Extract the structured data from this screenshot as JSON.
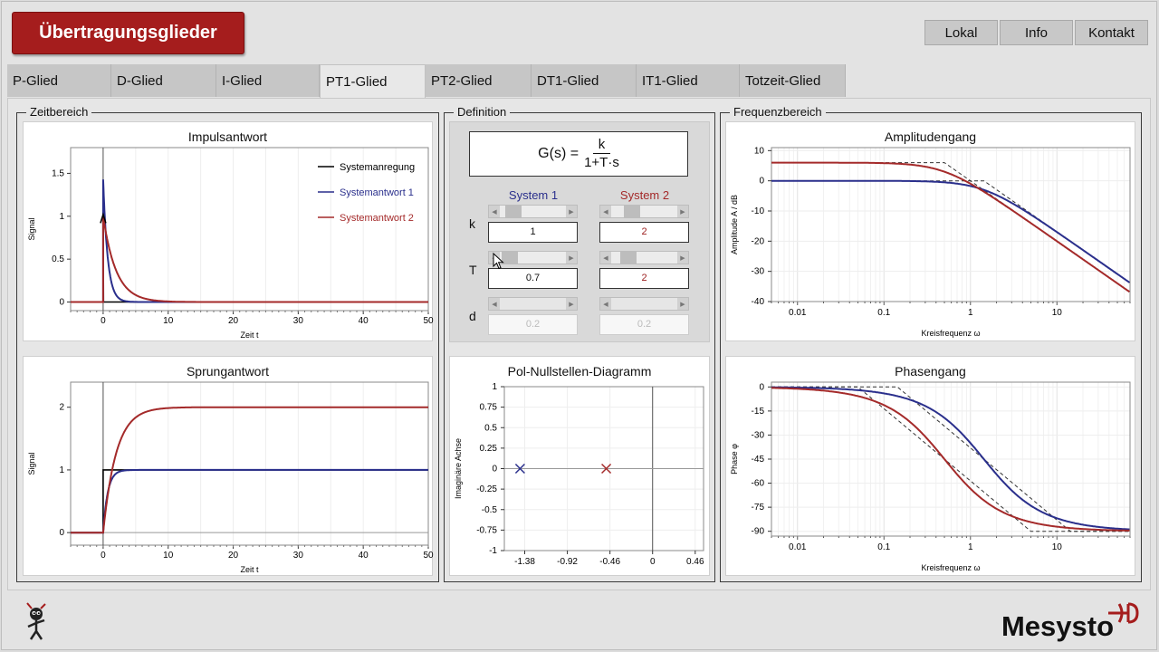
{
  "app": {
    "title": "Übertragungsglieder"
  },
  "top_nav": [
    {
      "label": "Lokal"
    },
    {
      "label": "Info"
    },
    {
      "label": "Kontakt"
    }
  ],
  "tabs": [
    {
      "label": "P-Glied"
    },
    {
      "label": "D-Glied"
    },
    {
      "label": "I-Glied"
    },
    {
      "label": "PT1-Glied"
    },
    {
      "label": "PT2-Glied"
    },
    {
      "label": "DT1-Glied"
    },
    {
      "label": "IT1-Glied"
    },
    {
      "label": "Totzeit-Glied"
    }
  ],
  "active_tab": "PT1-Glied",
  "groups": {
    "time": "Zeitbereich",
    "definition": "Definition",
    "freq": "Frequenzbereich"
  },
  "definition": {
    "lhs": "G(s) =",
    "numerator": "k",
    "denominator": "1+T·s",
    "system1_label": "System 1",
    "system2_label": "System 2",
    "params": [
      {
        "name": "k",
        "s1": "1",
        "s2": "2",
        "enabled": true
      },
      {
        "name": "T",
        "s1": "0.7",
        "s2": "2",
        "enabled": true
      },
      {
        "name": "d",
        "s1": "0.2",
        "s2": "0.2",
        "enabled": false
      }
    ]
  },
  "colors": {
    "system1": "#2a2f8c",
    "system2": "#a42a2a",
    "excitation": "#000000",
    "asymptote": "#333333",
    "brand": "#a51d1d"
  },
  "legend": [
    "Systemanregung",
    "Systemantwort 1",
    "Systemantwort 2"
  ],
  "charts": {
    "impulse": {
      "title": "Impulsantwort",
      "xlabel": "Zeit t",
      "ylabel": "Signal",
      "xticks": [
        "0",
        "10",
        "20",
        "30",
        "40",
        "50"
      ],
      "yticks": [
        "0",
        "0.5",
        "1",
        "1.5"
      ]
    },
    "step": {
      "title": "Sprungantwort",
      "xlabel": "Zeit t",
      "ylabel": "Signal",
      "xticks": [
        "0",
        "10",
        "20",
        "30",
        "40",
        "50"
      ],
      "yticks": [
        "0",
        "1",
        "2"
      ]
    },
    "pole_zero": {
      "title": "Pol-Nullstellen-Diagramm",
      "ylabel": "Imaginäre Achse",
      "xticks": [
        "-1.38",
        "-0.92",
        "-0.46",
        "0",
        "0.46"
      ],
      "yticks": [
        "1",
        "0.75",
        "0.5",
        "0.25",
        "0",
        "-0.25",
        "-0.5",
        "-0.75",
        "-1"
      ]
    },
    "amplitude": {
      "title": "Amplitudengang",
      "xlabel": "Kreisfrequenz ω",
      "ylabel": "Amplitude A / dB",
      "xticks": [
        "0.01",
        "0.1",
        "1",
        "10"
      ],
      "yticks": [
        "10",
        "0",
        "-10",
        "-20",
        "-30",
        "-40"
      ]
    },
    "phase": {
      "title": "Phasengang",
      "xlabel": "Kreisfrequenz ω",
      "ylabel": "Phase φ",
      "xticks": [
        "0.01",
        "0.1",
        "1",
        "10"
      ],
      "yticks": [
        "0",
        "-15",
        "-30",
        "-45",
        "-60",
        "-75",
        "-90"
      ]
    }
  },
  "chart_data": [
    {
      "type": "line",
      "title": "Impulsantwort",
      "xlabel": "Zeit t",
      "ylabel": "Signal",
      "xlim": [
        -5,
        50
      ],
      "ylim": [
        -0.1,
        1.8
      ],
      "series": [
        {
          "name": "Systemanregung",
          "k": 1,
          "T": 0,
          "kind": "impulse"
        },
        {
          "name": "Systemantwort 1",
          "k": 1,
          "T": 0.7,
          "kind": "impulse"
        },
        {
          "name": "Systemantwort 2",
          "k": 2,
          "T": 2,
          "kind": "impulse"
        }
      ]
    },
    {
      "type": "line",
      "title": "Sprungantwort",
      "xlabel": "Zeit t",
      "ylabel": "Signal",
      "xlim": [
        -5,
        50
      ],
      "ylim": [
        -0.2,
        2.4
      ],
      "series": [
        {
          "name": "Systemanregung",
          "k": 1,
          "T": 0,
          "kind": "step"
        },
        {
          "name": "Systemantwort 1",
          "k": 1,
          "T": 0.7,
          "kind": "step"
        },
        {
          "name": "Systemantwort 2",
          "k": 2,
          "T": 2,
          "kind": "step"
        }
      ]
    },
    {
      "type": "scatter",
      "title": "Pol-Nullstellen-Diagramm",
      "ylabel": "Imaginäre Achse",
      "xlim": [
        -1.6,
        0.55
      ],
      "ylim": [
        -1,
        1
      ],
      "series": [
        {
          "name": "System 1",
          "points": [
            [
              -1.43,
              0
            ]
          ]
        },
        {
          "name": "System 2",
          "points": [
            [
              -0.5,
              0
            ]
          ]
        }
      ]
    },
    {
      "type": "line",
      "title": "Amplitudengang",
      "xlabel": "Kreisfrequenz ω",
      "ylabel": "Amplitude A / dB",
      "xlim": [
        0.005,
        70
      ],
      "ylim": [
        -40,
        11
      ],
      "xscale": "log",
      "series": [
        {
          "name": "System 1",
          "k": 1,
          "T": 0.7
        },
        {
          "name": "System 2",
          "k": 2,
          "T": 2
        }
      ]
    },
    {
      "type": "line",
      "title": "Phasengang",
      "xlabel": "Kreisfrequenz ω",
      "ylabel": "Phase φ",
      "xlim": [
        0.005,
        70
      ],
      "ylim": [
        -93,
        3
      ],
      "xscale": "log",
      "series": [
        {
          "name": "System 1",
          "k": 1,
          "T": 0.7
        },
        {
          "name": "System 2",
          "k": 2,
          "T": 2
        }
      ]
    }
  ],
  "brand": "Mesysto"
}
